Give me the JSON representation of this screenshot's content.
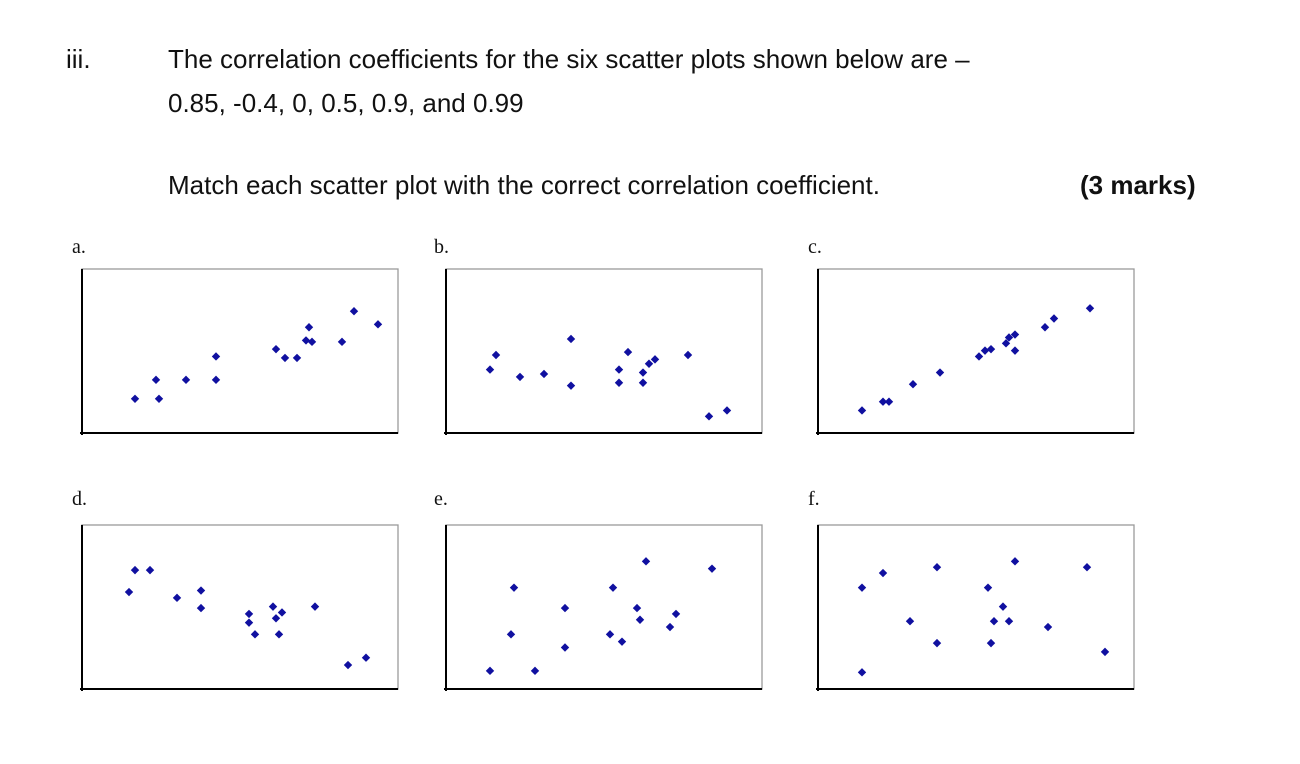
{
  "question": {
    "number": "iii.",
    "line1": "The correlation coefficients for the six scatter plots shown below are –",
    "line2": "0.85, -0.4, 0, 0.5, 0.9, and 0.99",
    "instruction": "Match each scatter plot with the correct correlation coefficient.",
    "marks": "(3 marks)"
  },
  "colors": {
    "points": "#1010a0",
    "frame": "#9a9a9a",
    "axis": "#000000"
  },
  "chart_data": [
    {
      "label": "a.",
      "type": "scatter",
      "points": [
        [
          1.5,
          2.0
        ],
        [
          2.3,
          2.0
        ],
        [
          2.2,
          3.3
        ],
        [
          3.2,
          3.3
        ],
        [
          4.2,
          3.3
        ],
        [
          4.2,
          4.9
        ],
        [
          6.2,
          5.4
        ],
        [
          6.5,
          4.8
        ],
        [
          6.9,
          4.8
        ],
        [
          7.2,
          6.0
        ],
        [
          7.3,
          6.9
        ],
        [
          7.4,
          5.9
        ],
        [
          8.4,
          5.9
        ],
        [
          8.8,
          8.0
        ],
        [
          9.6,
          7.1
        ]
      ]
    },
    {
      "label": "b.",
      "type": "scatter",
      "points": [
        [
          1.2,
          4.0
        ],
        [
          1.4,
          5.0
        ],
        [
          2.2,
          3.5
        ],
        [
          3.0,
          3.7
        ],
        [
          3.9,
          2.9
        ],
        [
          3.9,
          6.1
        ],
        [
          5.5,
          4.0
        ],
        [
          5.5,
          3.1
        ],
        [
          5.8,
          5.2
        ],
        [
          6.3,
          3.8
        ],
        [
          6.3,
          3.1
        ],
        [
          6.5,
          4.4
        ],
        [
          6.7,
          4.7
        ],
        [
          7.8,
          5.0
        ],
        [
          8.5,
          0.8
        ],
        [
          9.1,
          1.2
        ]
      ]
    },
    {
      "label": "c.",
      "type": "scatter",
      "points": [
        [
          1.2,
          1.2
        ],
        [
          1.9,
          1.8
        ],
        [
          2.1,
          1.8
        ],
        [
          2.9,
          3.0
        ],
        [
          3.8,
          3.8
        ],
        [
          5.1,
          4.9
        ],
        [
          5.3,
          5.3
        ],
        [
          5.5,
          5.4
        ],
        [
          6.0,
          5.8
        ],
        [
          6.1,
          6.2
        ],
        [
          6.3,
          5.3
        ],
        [
          6.3,
          6.4
        ],
        [
          7.3,
          6.9
        ],
        [
          7.6,
          7.5
        ],
        [
          8.8,
          8.2
        ]
      ]
    },
    {
      "label": "d.",
      "type": "scatter",
      "points": [
        [
          1.3,
          6.3
        ],
        [
          1.5,
          7.8
        ],
        [
          2.0,
          7.8
        ],
        [
          2.9,
          5.9
        ],
        [
          3.7,
          6.4
        ],
        [
          3.7,
          5.2
        ],
        [
          5.3,
          4.8
        ],
        [
          5.3,
          4.2
        ],
        [
          5.5,
          3.4
        ],
        [
          6.1,
          5.3
        ],
        [
          6.2,
          4.5
        ],
        [
          6.3,
          3.4
        ],
        [
          6.4,
          4.9
        ],
        [
          7.5,
          5.3
        ],
        [
          8.6,
          1.3
        ],
        [
          9.2,
          1.8
        ]
      ]
    },
    {
      "label": "e.",
      "type": "scatter",
      "points": [
        [
          1.2,
          0.9
        ],
        [
          1.9,
          3.4
        ],
        [
          2.0,
          6.6
        ],
        [
          2.7,
          0.9
        ],
        [
          3.7,
          5.2
        ],
        [
          3.7,
          2.5
        ],
        [
          5.3,
          6.6
        ],
        [
          5.2,
          3.4
        ],
        [
          5.6,
          2.9
        ],
        [
          6.1,
          5.2
        ],
        [
          6.2,
          4.4
        ],
        [
          6.4,
          8.4
        ],
        [
          7.2,
          3.9
        ],
        [
          7.4,
          4.8
        ],
        [
          8.6,
          7.9
        ]
      ]
    },
    {
      "label": "f.",
      "type": "scatter",
      "points": [
        [
          1.2,
          6.6
        ],
        [
          1.2,
          0.8
        ],
        [
          1.9,
          7.6
        ],
        [
          2.8,
          4.3
        ],
        [
          3.7,
          8.0
        ],
        [
          3.7,
          2.8
        ],
        [
          5.4,
          6.6
        ],
        [
          5.5,
          2.8
        ],
        [
          5.6,
          4.3
        ],
        [
          5.9,
          5.3
        ],
        [
          6.1,
          4.3
        ],
        [
          6.3,
          8.4
        ],
        [
          7.4,
          3.9
        ],
        [
          8.7,
          8.0
        ],
        [
          9.3,
          2.2
        ]
      ]
    }
  ]
}
